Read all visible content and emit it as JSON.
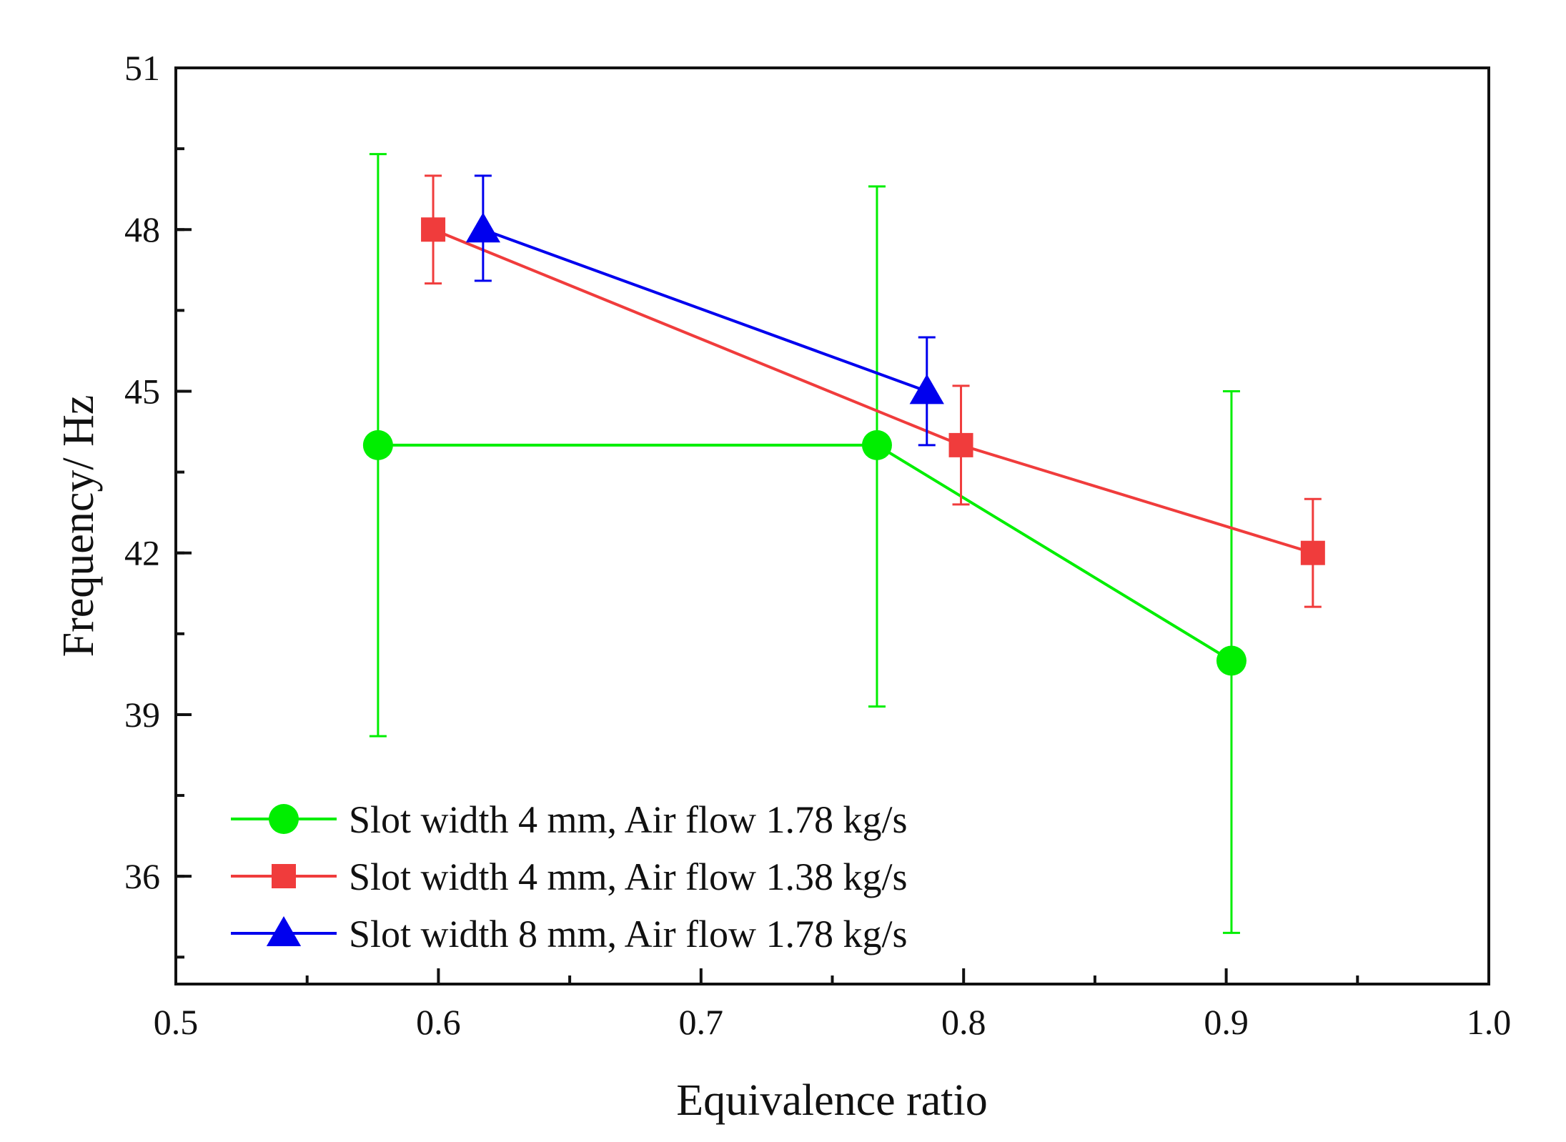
{
  "chart_data": {
    "type": "line",
    "title": "",
    "xlabel": "Equivalence ratio",
    "ylabel": "Frequency/ Hz",
    "xlim": [
      0.5,
      1.0
    ],
    "ylim": [
      34,
      51
    ],
    "xticks": [
      0.5,
      0.6,
      0.7,
      0.8,
      0.9,
      1.0
    ],
    "xtick_labels": [
      "0.5",
      "0.6",
      "0.7",
      "0.8",
      "0.9",
      "1.0"
    ],
    "yticks": [
      36,
      39,
      42,
      45,
      48,
      51
    ],
    "ytick_labels": [
      "36",
      "39",
      "42",
      "45",
      "48",
      "51"
    ],
    "grid": false,
    "legend_position": "bottom-left",
    "series": [
      {
        "name": "Slot width 4 mm, Air flow 1.78 kg/s",
        "color": "#00ee00",
        "marker": "circle",
        "x": [
          0.577,
          0.767,
          0.902
        ],
        "y": [
          44,
          44,
          40
        ],
        "err_low": [
          38.6,
          39.15,
          34.95
        ],
        "err_high": [
          49.4,
          48.8,
          45.0
        ]
      },
      {
        "name": "Slot width 4 mm, Air flow 1.38 kg/s",
        "color": "#f03c3c",
        "marker": "square",
        "x": [
          0.598,
          0.799,
          0.933
        ],
        "y": [
          48,
          44,
          42
        ],
        "err_low": [
          47.0,
          42.9,
          41.0
        ],
        "err_high": [
          49.0,
          45.1,
          43.0
        ]
      },
      {
        "name": "Slot width 8 mm, Air flow 1.78 kg/s",
        "color": "#0000ee",
        "marker": "triangle",
        "x": [
          0.617,
          0.786
        ],
        "y": [
          48,
          45
        ],
        "err_low": [
          47.05,
          44.0
        ],
        "err_high": [
          49.0,
          46.0
        ]
      }
    ]
  }
}
